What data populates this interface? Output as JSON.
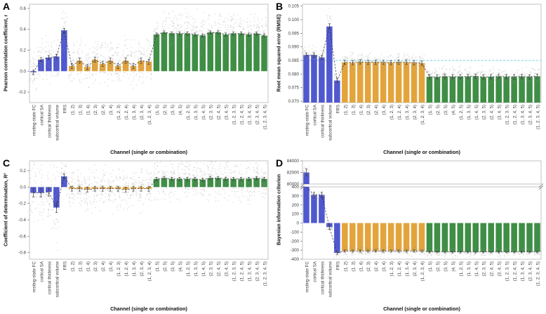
{
  "figure": {
    "background": "#ffffff"
  },
  "colors": {
    "single_channel": "#5058d0",
    "pair_triple": "#e4a43c",
    "with_frs": "#3e8e45",
    "points": "#909090",
    "error": "#3a3a3a",
    "connector": "#2a2a2a",
    "baseline_dashed": "#5ec8d8",
    "spine": "#b5b5b5",
    "tick_text": "#3c3c3c",
    "label_text": "#111111"
  },
  "categories": [
    "resting-state FC",
    "cortical SA",
    "cortical thickness",
    "subcortical volume",
    "FRS",
    "(1, 2)",
    "(1, 3)",
    "(1, 4)",
    "(2, 3)",
    "(2, 4)",
    "(3, 4)",
    "(1, 2, 3)",
    "(1, 2, 4)",
    "(1, 3, 4)",
    "(2, 3, 4)",
    "(1, 2, 3, 4)",
    "(1, 5)",
    "(2, 5)",
    "(3, 5)",
    "(4, 5)",
    "(1, 2, 5)",
    "(1, 3, 5)",
    "(1, 4, 5)",
    "(2, 3, 5)",
    "(2, 4, 5)",
    "(3, 4, 5)",
    "(1, 2, 3, 5)",
    "(1, 2, 4, 5)",
    "(1, 3, 4, 5)",
    "(2, 3, 4, 5)",
    "(1, 2, 3, 4, 5)"
  ],
  "color_breaks": [
    5,
    16
  ],
  "chart_data": [
    {
      "panel": "A",
      "type": "bar",
      "ylabel": "Pearson correlation coefficient, r",
      "xlabel": "Channel (single or combination)",
      "ylim": [
        -0.3,
        0.64
      ],
      "ytick_vals": [
        0.6,
        0.4,
        0.2,
        0.0,
        -0.2
      ],
      "ytick_labels": [
        "0.6",
        "0.4",
        "0.2",
        "0.0",
        "-0.2"
      ],
      "bar_anchor": "zero",
      "values": [
        -0.01,
        0.11,
        0.13,
        0.14,
        0.39,
        0.05,
        0.1,
        0.04,
        0.11,
        0.07,
        0.1,
        0.05,
        0.1,
        0.05,
        0.1,
        0.09,
        0.35,
        0.37,
        0.36,
        0.36,
        0.36,
        0.35,
        0.34,
        0.37,
        0.37,
        0.35,
        0.36,
        0.36,
        0.35,
        0.36,
        0.34
      ],
      "errors": [
        0.02,
        0.02,
        0.02,
        0.02,
        0.02,
        0.025,
        0.025,
        0.025,
        0.025,
        0.025,
        0.025,
        0.025,
        0.025,
        0.025,
        0.025,
        0.025,
        0.015,
        0.015,
        0.015,
        0.015,
        0.015,
        0.015,
        0.015,
        0.015,
        0.015,
        0.015,
        0.015,
        0.015,
        0.015,
        0.015,
        0.015
      ],
      "point_sd": 0.1,
      "point_n": 40,
      "point_sd_overrides": {
        "4": 0.11
      }
    },
    {
      "panel": "B",
      "type": "bar",
      "ylabel": "Root mean squared error (RMSE)",
      "xlabel": "Channel (single or combination)",
      "ylim": [
        0.0695,
        0.1057
      ],
      "ytick_vals": [
        0.105,
        0.1,
        0.095,
        0.09,
        0.085,
        0.08,
        0.075,
        0.07
      ],
      "ytick_labels": [
        "0.105",
        "0.100",
        "0.095",
        "0.090",
        "0.085",
        "0.080",
        "0.075",
        "0.070"
      ],
      "bar_anchor": "bottom",
      "hline": 0.085,
      "values": [
        0.087,
        0.087,
        0.0861,
        0.0975,
        0.0776,
        0.0843,
        0.0842,
        0.0845,
        0.0843,
        0.0844,
        0.0843,
        0.0842,
        0.0844,
        0.0843,
        0.0842,
        0.084,
        0.079,
        0.0789,
        0.0791,
        0.079,
        0.079,
        0.0791,
        0.0792,
        0.0789,
        0.079,
        0.0791,
        0.079,
        0.079,
        0.0791,
        0.079,
        0.0792
      ],
      "errors": [
        0.0008,
        0.0008,
        0.0008,
        0.001,
        0.0008,
        0.0008,
        0.0008,
        0.0008,
        0.0008,
        0.0008,
        0.0008,
        0.0008,
        0.0008,
        0.0008,
        0.0008,
        0.0008,
        0.0008,
        0.0008,
        0.0008,
        0.0008,
        0.0008,
        0.0008,
        0.0008,
        0.0008,
        0.0008,
        0.0008,
        0.0008,
        0.0008,
        0.0008,
        0.0008,
        0.0008
      ],
      "point_sd": 0.0017,
      "point_n": 26,
      "point_sd_overrides": {
        "3": 0.0028,
        "4": 0.002
      }
    },
    {
      "panel": "C",
      "type": "bar",
      "ylabel": "Coefficient of determination, R²",
      "xlabel": "Channel (single or combination)",
      "ylim": [
        -0.88,
        0.32
      ],
      "ytick_vals": [
        0.2,
        0.0,
        -0.2,
        -0.4,
        -0.6,
        -0.8
      ],
      "ytick_labels": [
        "0.2",
        "0.0",
        "-0.2",
        "-0.4",
        "-0.6",
        "-0.8"
      ],
      "bar_anchor": "zero",
      "values": [
        -0.07,
        -0.07,
        -0.06,
        -0.25,
        0.13,
        -0.02,
        -0.02,
        -0.03,
        -0.02,
        -0.02,
        -0.02,
        -0.02,
        -0.03,
        -0.02,
        -0.02,
        -0.02,
        0.1,
        0.11,
        0.1,
        0.1,
        0.1,
        0.1,
        0.09,
        0.11,
        0.11,
        0.1,
        0.1,
        0.1,
        0.1,
        0.11,
        0.1
      ],
      "errors": [
        0.05,
        0.05,
        0.05,
        0.06,
        0.03,
        0.03,
        0.03,
        0.03,
        0.03,
        0.03,
        0.03,
        0.03,
        0.03,
        0.03,
        0.03,
        0.03,
        0.02,
        0.02,
        0.02,
        0.02,
        0.02,
        0.02,
        0.02,
        0.02,
        0.02,
        0.02,
        0.02,
        0.02,
        0.02,
        0.02,
        0.02
      ],
      "point_sd": 0.12,
      "point_n": 40,
      "point_sd_overrides": {
        "0": 0.18,
        "1": 0.18,
        "2": 0.18,
        "3": 0.28,
        "4": 0.12
      }
    },
    {
      "panel": "D",
      "type": "bar",
      "ylabel": "Bayesian information criterion",
      "xlabel": "Channel (single or combination)",
      "broken": true,
      "upper": {
        "ylim": [
          80000,
          84000
        ],
        "ytick_vals": [
          84000,
          82000,
          80000
        ],
        "ytick_labels": [
          "84000",
          "82000",
          "80000"
        ]
      },
      "lower": {
        "ylim": [
          -400,
          400
        ],
        "ytick_vals": [
          400,
          300,
          200,
          100,
          0,
          -100,
          -200,
          -300,
          -400
        ],
        "ytick_labels": [
          "400",
          "300",
          "200",
          "100",
          "0",
          "-100",
          "-200",
          "-300",
          "-400"
        ]
      },
      "bar_anchor": "zero",
      "values": [
        82000,
        310,
        310,
        -45,
        -330,
        -310,
        -310,
        -310,
        -310,
        -310,
        -310,
        -310,
        -310,
        -310,
        -310,
        -310,
        -320,
        -320,
        -320,
        -320,
        -320,
        -320,
        -320,
        -320,
        -320,
        -320,
        -320,
        -320,
        -320,
        -320,
        -320
      ],
      "errors": [
        600,
        30,
        30,
        25,
        15,
        12,
        12,
        12,
        12,
        12,
        12,
        12,
        12,
        12,
        12,
        12,
        10,
        10,
        10,
        10,
        10,
        10,
        10,
        10,
        10,
        10,
        10,
        10,
        10,
        10,
        10
      ],
      "point_sd": 25,
      "point_n": 20,
      "point_sd_overrides": {
        "0": 500
      }
    }
  ]
}
